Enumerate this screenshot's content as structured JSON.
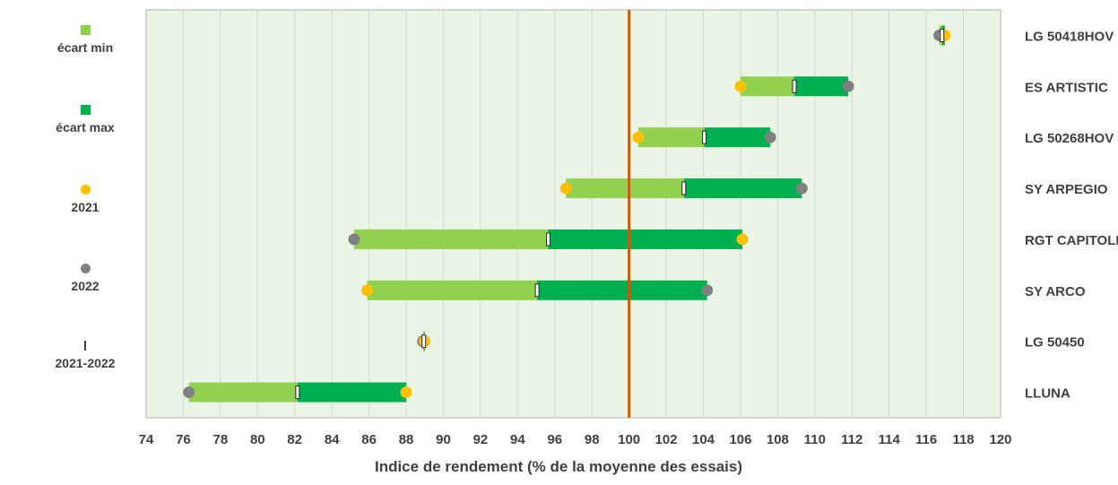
{
  "legend": {
    "items": [
      {
        "label": "écart min",
        "symbol": "square",
        "color": "#92d050"
      },
      {
        "label": "écart max",
        "symbol": "square",
        "color": "#00b050"
      },
      {
        "label": "2021",
        "symbol": "circle",
        "color": "#ffc000"
      },
      {
        "label": "2022",
        "symbol": "circle",
        "color": "#808080"
      },
      {
        "label": "2021-2022",
        "symbol": "tick",
        "color": "#404040"
      }
    ]
  },
  "chart_data": {
    "type": "bar",
    "orientation": "horizontal-range",
    "xlabel": "Indice de rendement (% de la moyenne des essais)",
    "xlim": [
      74,
      120
    ],
    "xticks": [
      74,
      76,
      78,
      80,
      82,
      84,
      86,
      88,
      90,
      92,
      94,
      96,
      98,
      100,
      102,
      104,
      106,
      108,
      110,
      112,
      114,
      116,
      118,
      120
    ],
    "reference_line": {
      "x": 100,
      "color": "#c55a11"
    },
    "grid": true,
    "legend_position": "left",
    "colors": {
      "min_bar": "#92d050",
      "max_bar": "#00b050",
      "y2021": "#ffc000",
      "y2022": "#808080",
      "plot_bg": "#ebf5e6",
      "grid": "#d4d9d0",
      "text": "#404040"
    },
    "categories": [
      "LG 50418HOV",
      "ES ARTISTIC",
      "LG 50268HOV",
      "SY ARPEGIO",
      "RGT CAPITOLL",
      "SY ARCO",
      "LG 50450",
      "LLUNA"
    ],
    "series": [
      {
        "name": "2021",
        "values": [
          117.0,
          106.0,
          100.5,
          96.6,
          106.1,
          85.9,
          89.0,
          88.0
        ]
      },
      {
        "name": "2022",
        "values": [
          116.7,
          111.8,
          107.6,
          109.3,
          85.2,
          104.2,
          88.9,
          76.3
        ]
      },
      {
        "name": "2021-2022",
        "values": [
          116.85,
          108.9,
          104.05,
          102.95,
          95.65,
          95.05,
          88.95,
          82.15
        ]
      }
    ]
  }
}
